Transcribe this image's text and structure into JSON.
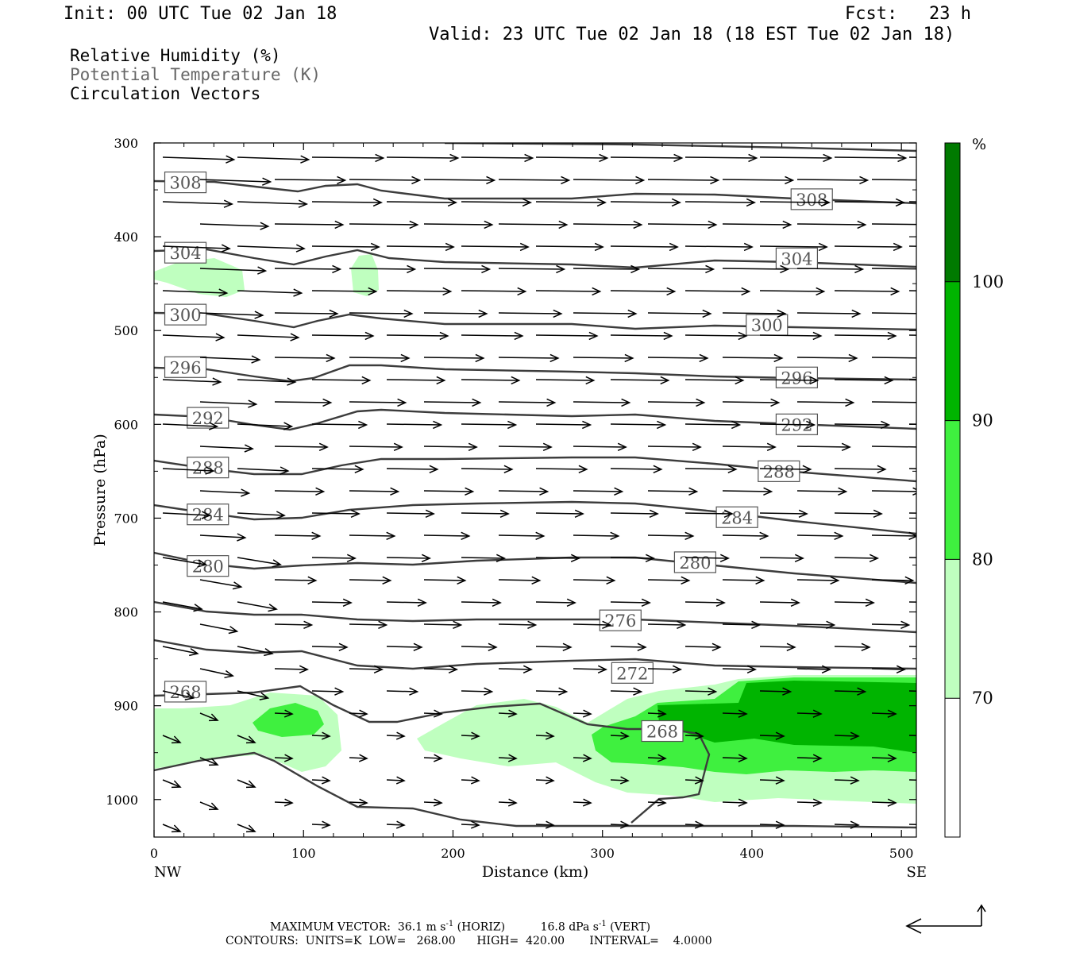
{
  "header": {
    "init": "Init: 00 UTC Tue 02 Jan 18",
    "fcst": "Fcst:   23 h",
    "valid": "Valid: 23 UTC Tue 02 Jan 18 (18 EST Tue 02 Jan 18)"
  },
  "legend": {
    "rh": "Relative Humidity (%)",
    "theta": "Potential Temperature (K)",
    "vectors": "Circulation Vectors"
  },
  "footer": {
    "max_vector_label": "MAXIMUM VECTOR:",
    "horiz_value": "36.1 m s",
    "horiz_exp": "-1",
    "horiz_tag": "(HORIZ)",
    "vert_value": "16.8 dPa s",
    "vert_exp": "-1",
    "vert_tag": "(VERT)",
    "contours": "CONTOURS:  UNITS=K  LOW=   268.00      HIGH=  420.00       INTERVAL=    4.0000"
  },
  "colors": {
    "rh_70": "#bfffbf",
    "rh_80": "#3ff03f",
    "rh_90": "#00b400",
    "rh_100": "#007a00",
    "contour": "#3c3c3c",
    "vector": "#000000"
  },
  "chart_data": {
    "type": "cross-section",
    "xlabel": "Distance (km)",
    "ylabel": "Pressure (hPa)",
    "x_ticks": [
      0,
      100,
      200,
      300,
      400,
      500
    ],
    "y_ticks": [
      300,
      400,
      500,
      600,
      700,
      800,
      900,
      1000
    ],
    "xlim": [
      0,
      510
    ],
    "ylim": [
      300,
      1040
    ],
    "x_endpoint_labels": {
      "left": "NW",
      "right": "SE"
    },
    "colorbar": {
      "unit": "%",
      "levels": [
        70,
        80,
        90,
        100
      ],
      "labels": [
        "70",
        "80",
        "90",
        "100"
      ]
    },
    "contour_labels": [
      {
        "text": "308",
        "x": 21,
        "p": 342
      },
      {
        "text": "308",
        "x": 440,
        "p": 360
      },
      {
        "text": "304",
        "x": 21,
        "p": 417
      },
      {
        "text": "304",
        "x": 430,
        "p": 423
      },
      {
        "text": "300",
        "x": 21,
        "p": 483
      },
      {
        "text": "300",
        "x": 410,
        "p": 494
      },
      {
        "text": "296",
        "x": 21,
        "p": 539
      },
      {
        "text": "296",
        "x": 430,
        "p": 550
      },
      {
        "text": "292",
        "x": 36,
        "p": 593
      },
      {
        "text": "292",
        "x": 430,
        "p": 600
      },
      {
        "text": "288",
        "x": 36,
        "p": 646
      },
      {
        "text": "288",
        "x": 418,
        "p": 650
      },
      {
        "text": "284",
        "x": 36,
        "p": 696
      },
      {
        "text": "284",
        "x": 390,
        "p": 699
      },
      {
        "text": "280",
        "x": 36,
        "p": 751
      },
      {
        "text": "280",
        "x": 362,
        "p": 747
      },
      {
        "text": "276",
        "x": 312,
        "p": 809
      },
      {
        "text": "272",
        "x": 320,
        "p": 865
      },
      {
        "text": "268",
        "x": 21,
        "p": 885
      },
      {
        "text": "268",
        "x": 340,
        "p": 927
      }
    ],
    "theta_levels": [
      308,
      304,
      300,
      296,
      292,
      288,
      284,
      280,
      276,
      272,
      268
    ]
  }
}
